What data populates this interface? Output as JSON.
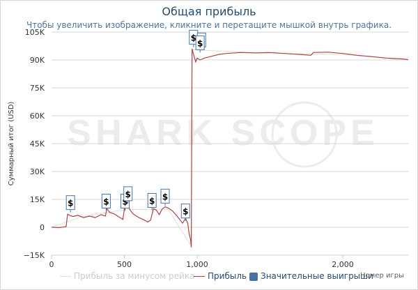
{
  "title": "Общая прибыль",
  "subtitle": "Чтобы увеличить изображение, кликните и перетащите мышкой внутрь графика.",
  "watermark": "SHARK SCOPE",
  "colors": {
    "profit_line": "#aa4643",
    "rake_line": "#dddddd",
    "big_win": "#4572a7",
    "grid": "#d8d8d8",
    "title": "#274b6d",
    "subtitle": "#4d759e"
  },
  "legend": {
    "rake_label": "Прибыль за минусом рейка",
    "profit_label": "Прибыль",
    "big_wins_label": "Значительные выигрыши"
  },
  "chart_data": {
    "type": "line",
    "ylabel": "Суммарный итог (USD)",
    "xlabel": "Номер игры",
    "xlim": [
      0,
      2450
    ],
    "ylim": [
      -15000,
      105000
    ],
    "x_ticks": [
      {
        "value": 0,
        "label": "0"
      },
      {
        "value": 500,
        "label": "500"
      },
      {
        "value": 1000,
        "label": "1,000"
      },
      {
        "value": 2000,
        "label": "2,000"
      }
    ],
    "y_ticks": [
      {
        "value": -15000,
        "label": "−15K"
      },
      {
        "value": 0,
        "label": "0"
      },
      {
        "value": 15000,
        "label": "15K"
      },
      {
        "value": 30000,
        "label": "30K"
      },
      {
        "value": 45000,
        "label": "45K"
      },
      {
        "value": 60000,
        "label": "60K"
      },
      {
        "value": 75000,
        "label": "75K"
      },
      {
        "value": 90000,
        "label": "90K"
      },
      {
        "value": 105000,
        "label": "105K"
      }
    ],
    "grid": true,
    "legend_position": "bottom",
    "series": [
      {
        "name": "Прибыль",
        "points": [
          [
            0,
            0
          ],
          [
            50,
            -200
          ],
          [
            100,
            300
          ],
          [
            110,
            7000
          ],
          [
            130,
            6200
          ],
          [
            150,
            5800
          ],
          [
            180,
            6400
          ],
          [
            220,
            5200
          ],
          [
            260,
            6000
          ],
          [
            300,
            5200
          ],
          [
            340,
            6800
          ],
          [
            370,
            6000
          ],
          [
            380,
            10000
          ],
          [
            400,
            8000
          ],
          [
            430,
            7200
          ],
          [
            470,
            5200
          ],
          [
            490,
            4200
          ],
          [
            500,
            10000
          ],
          [
            520,
            12800
          ],
          [
            540,
            9200
          ],
          [
            560,
            7200
          ],
          [
            600,
            5200
          ],
          [
            640,
            3800
          ],
          [
            660,
            2800
          ],
          [
            680,
            3800
          ],
          [
            700,
            10000
          ],
          [
            720,
            9200
          ],
          [
            740,
            6800
          ],
          [
            760,
            9800
          ],
          [
            780,
            11000
          ],
          [
            800,
            10400
          ],
          [
            830,
            8800
          ],
          [
            860,
            6200
          ],
          [
            880,
            4200
          ],
          [
            900,
            2200
          ],
          [
            920,
            4800
          ],
          [
            935,
            2200
          ],
          [
            945,
            -3500
          ],
          [
            955,
            -6800
          ],
          [
            960,
            -10800
          ],
          [
            965,
            96000
          ],
          [
            975,
            93000
          ],
          [
            990,
            89000
          ],
          [
            1000,
            91000
          ],
          [
            1020,
            90000
          ],
          [
            1050,
            91000
          ],
          [
            1100,
            92000
          ],
          [
            1150,
            93000
          ],
          [
            1200,
            93500
          ],
          [
            1300,
            94000
          ],
          [
            1400,
            93800
          ],
          [
            1500,
            94000
          ],
          [
            1600,
            93500
          ],
          [
            1700,
            93000
          ],
          [
            1780,
            92500
          ],
          [
            1800,
            94000
          ],
          [
            1900,
            94200
          ],
          [
            2000,
            93500
          ],
          [
            2100,
            92500
          ],
          [
            2200,
            91800
          ],
          [
            2300,
            91000
          ],
          [
            2400,
            90600
          ],
          [
            2450,
            90200
          ]
        ]
      },
      {
        "name": "Прибыль за минусом рейка",
        "points": [
          [
            0,
            0
          ],
          [
            200,
            5500
          ],
          [
            500,
            9500
          ],
          [
            800,
            9800
          ],
          [
            960,
            -10000
          ],
          [
            965,
            95500
          ],
          [
            1500,
            93500
          ],
          [
            2000,
            93000
          ],
          [
            2450,
            89800
          ]
        ]
      }
    ],
    "big_wins": [
      {
        "x": 130,
        "y": 8000,
        "label": "$"
      },
      {
        "x": 375,
        "y": 8800,
        "label": "$"
      },
      {
        "x": 505,
        "y": 8800,
        "label": "$"
      },
      {
        "x": 525,
        "y": 12800,
        "label": "$"
      },
      {
        "x": 690,
        "y": 9200,
        "label": "$"
      },
      {
        "x": 780,
        "y": 11500,
        "label": "$"
      },
      {
        "x": 920,
        "y": 3500,
        "label": "$"
      },
      {
        "x": 975,
        "y": 97000,
        "label": "$"
      },
      {
        "x": 1030,
        "y": 95500,
        "label": "$"
      },
      {
        "x": 1020,
        "y": 94000,
        "label": "$"
      }
    ]
  }
}
